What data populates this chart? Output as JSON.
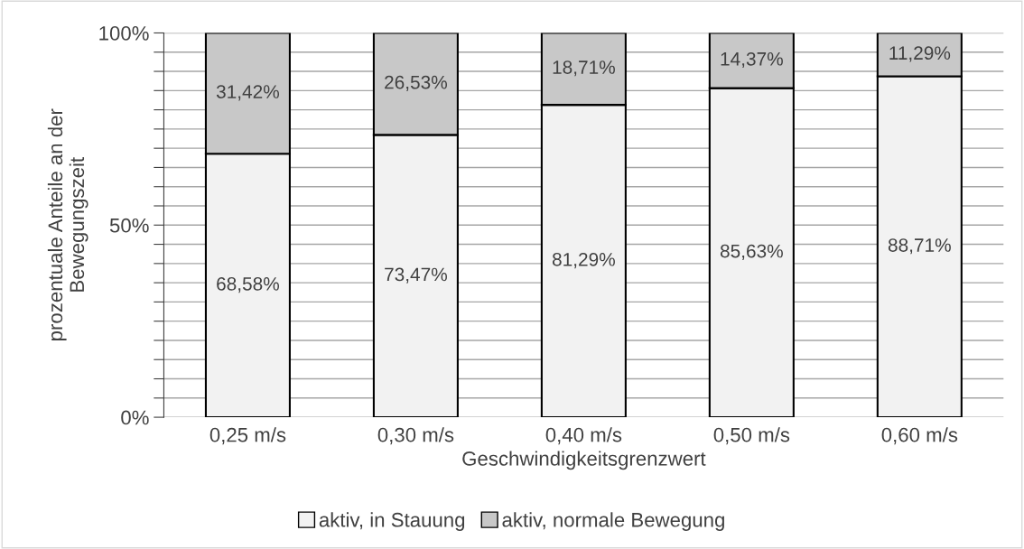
{
  "chart_data": {
    "type": "bar",
    "stacked": true,
    "xlabel": "Geschwindigkeitsgrenzwert",
    "ylabel": "prozentuale Anteile an der\nBewegungszeit",
    "categories": [
      "0,25 m/s",
      "0,30 m/s",
      "0,40 m/s",
      "0,50 m/s",
      "0,60 m/s"
    ],
    "series": [
      {
        "name": "aktiv, in Stauung",
        "color": "#f2f2f2",
        "values": [
          68.58,
          73.47,
          81.29,
          85.63,
          88.71
        ],
        "value_labels": [
          "68,58%",
          "73,47%",
          "81,29%",
          "85,63%",
          "88,71%"
        ]
      },
      {
        "name": "aktiv, normale Bewegung",
        "color": "#c8c8c8",
        "values": [
          31.42,
          26.53,
          18.71,
          14.37,
          11.29
        ],
        "value_labels": [
          "31,42%",
          "26,53%",
          "18,71%",
          "14,37%",
          "11,29%"
        ]
      }
    ],
    "ylim": [
      0,
      100
    ],
    "yticks": [
      {
        "value": 0,
        "label": "0%"
      },
      {
        "value": 5,
        "label": null
      },
      {
        "value": 10,
        "label": null
      },
      {
        "value": 15,
        "label": null
      },
      {
        "value": 20,
        "label": null
      },
      {
        "value": 25,
        "label": null
      },
      {
        "value": 30,
        "label": null
      },
      {
        "value": 35,
        "label": null
      },
      {
        "value": 40,
        "label": null
      },
      {
        "value": 45,
        "label": null
      },
      {
        "value": 50,
        "label": "50%"
      },
      {
        "value": 55,
        "label": null
      },
      {
        "value": 60,
        "label": null
      },
      {
        "value": 65,
        "label": null
      },
      {
        "value": 70,
        "label": null
      },
      {
        "value": 75,
        "label": null
      },
      {
        "value": 80,
        "label": null
      },
      {
        "value": 85,
        "label": null
      },
      {
        "value": 90,
        "label": null
      },
      {
        "value": 95,
        "label": null
      },
      {
        "value": 100,
        "label": "100%"
      }
    ],
    "grid": "y",
    "legend": "bottom"
  }
}
